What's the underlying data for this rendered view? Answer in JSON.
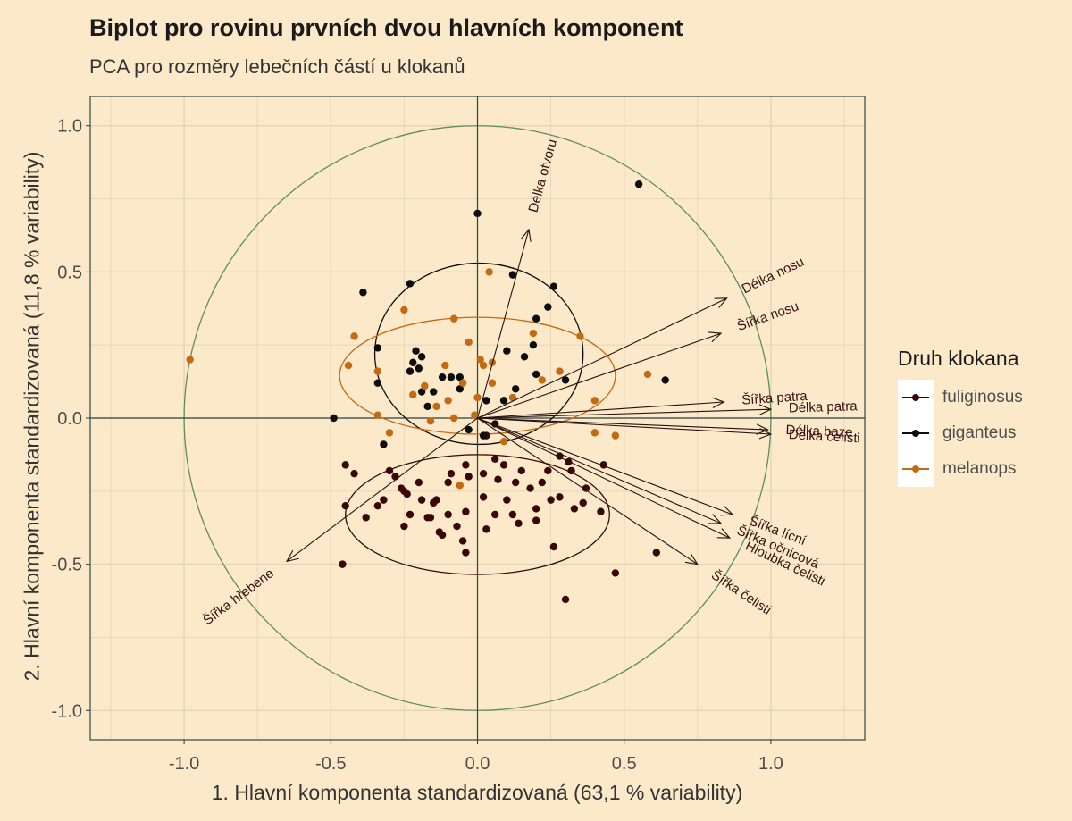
{
  "chart_data": {
    "type": "scatter",
    "title": "Biplot pro rovinu prvních dvou hlavních komponent",
    "subtitle": "PCA pro rozměry lebečních částí u klokanů",
    "xlabel": "1. Hlavní komponenta standardizovaná (63,1 % variability)",
    "ylabel": "2. Hlavní komponenta standardizovaná (11,8 % variability)",
    "xlim": [
      -1.32,
      1.32
    ],
    "ylim": [
      -1.1,
      1.1
    ],
    "x_ticks": [
      -1.0,
      -0.5,
      0.0,
      0.5,
      1.0
    ],
    "x_tick_labels": [
      "-1.0",
      "-0.5",
      "0.0",
      "0.5",
      "1.0"
    ],
    "y_ticks": [
      -1.0,
      -0.5,
      0.0,
      0.5,
      1.0
    ],
    "y_tick_labels": [
      "-1.0",
      "-0.5",
      "0.0",
      "0.5",
      "1.0"
    ],
    "grid": true,
    "legend_title": "Druh klokana",
    "legend_position": "right",
    "colors": {
      "background": "#fbe9c9",
      "grid": "#e3d4b8",
      "axis": "#2b4a44",
      "unit_circle": "#5f8d5e",
      "arrow": "#2a0f10",
      "arrow_label": "#3a0f12"
    },
    "series": [
      {
        "name": "fuliginosus",
        "color": "#3a0708",
        "ellipse": {
          "cx": 0.0,
          "cy": -0.33,
          "rx": 0.45,
          "ry": 0.205
        },
        "points": [
          [
            -0.46,
            -0.5
          ],
          [
            -0.45,
            -0.3
          ],
          [
            -0.45,
            -0.16
          ],
          [
            -0.42,
            -0.19
          ],
          [
            -0.38,
            -0.34
          ],
          [
            -0.34,
            -0.3
          ],
          [
            -0.32,
            -0.28
          ],
          [
            -0.3,
            -0.18
          ],
          [
            -0.28,
            -0.2
          ],
          [
            -0.26,
            -0.24
          ],
          [
            -0.25,
            -0.25
          ],
          [
            -0.25,
            -0.37
          ],
          [
            -0.24,
            -0.26
          ],
          [
            -0.23,
            -0.33
          ],
          [
            -0.2,
            -0.22
          ],
          [
            -0.19,
            -0.28
          ],
          [
            -0.17,
            -0.34
          ],
          [
            -0.16,
            -0.34
          ],
          [
            -0.15,
            -0.29
          ],
          [
            -0.14,
            -0.28
          ],
          [
            -0.13,
            -0.39
          ],
          [
            -0.12,
            -0.4
          ],
          [
            -0.1,
            -0.22
          ],
          [
            -0.1,
            -0.33
          ],
          [
            -0.09,
            -0.19
          ],
          [
            -0.07,
            -0.37
          ],
          [
            -0.05,
            -0.42
          ],
          [
            -0.04,
            -0.16
          ],
          [
            -0.04,
            -0.32
          ],
          [
            -0.04,
            -0.46
          ],
          [
            -0.03,
            -0.2
          ],
          [
            0.02,
            -0.19
          ],
          [
            0.02,
            -0.27
          ],
          [
            0.03,
            -0.06
          ],
          [
            0.03,
            -0.38
          ],
          [
            0.06,
            -0.14
          ],
          [
            0.07,
            -0.21
          ],
          [
            0.06,
            -0.33
          ],
          [
            0.09,
            -0.16
          ],
          [
            0.1,
            -0.28
          ],
          [
            0.12,
            -0.33
          ],
          [
            0.13,
            -0.22
          ],
          [
            0.14,
            -0.36
          ],
          [
            0.15,
            -0.18
          ],
          [
            0.18,
            -0.24
          ],
          [
            0.2,
            -0.31
          ],
          [
            0.2,
            -0.35
          ],
          [
            0.22,
            -0.22
          ],
          [
            0.24,
            -0.18
          ],
          [
            0.25,
            -0.28
          ],
          [
            0.26,
            -0.44
          ],
          [
            0.28,
            -0.27
          ],
          [
            0.28,
            -0.13
          ],
          [
            0.3,
            -0.62
          ],
          [
            0.31,
            -0.15
          ],
          [
            0.32,
            -0.18
          ],
          [
            0.33,
            -0.31
          ],
          [
            0.36,
            -0.29
          ],
          [
            0.37,
            -0.24
          ],
          [
            0.42,
            -0.32
          ],
          [
            0.43,
            -0.16
          ],
          [
            0.47,
            -0.53
          ],
          [
            0.61,
            -0.46
          ]
        ]
      },
      {
        "name": "giganteus",
        "color": "#0d0d0d",
        "ellipse": {
          "cx": 0.005,
          "cy": 0.22,
          "rx": 0.355,
          "ry": 0.31
        },
        "points": [
          [
            -0.49,
            0.0
          ],
          [
            -0.39,
            0.43
          ],
          [
            -0.34,
            0.24
          ],
          [
            -0.34,
            0.12
          ],
          [
            -0.32,
            -0.09
          ],
          [
            -0.23,
            0.46
          ],
          [
            -0.23,
            0.16
          ],
          [
            -0.22,
            0.19
          ],
          [
            -0.21,
            0.23
          ],
          [
            -0.2,
            0.17
          ],
          [
            -0.19,
            0.09
          ],
          [
            -0.19,
            0.21
          ],
          [
            -0.17,
            0.04
          ],
          [
            -0.15,
            0.09
          ],
          [
            -0.12,
            0.14
          ],
          [
            -0.09,
            0.14
          ],
          [
            -0.06,
            0.14
          ],
          [
            -0.06,
            0.1
          ],
          [
            -0.03,
            -0.04
          ],
          [
            0.0,
            0.7
          ],
          [
            0.02,
            -0.06
          ],
          [
            0.03,
            0.06
          ],
          [
            0.06,
            -0.02
          ],
          [
            0.09,
            0.06
          ],
          [
            0.1,
            0.23
          ],
          [
            0.12,
            0.49
          ],
          [
            0.13,
            0.1
          ],
          [
            0.16,
            0.21
          ],
          [
            0.19,
            0.25
          ],
          [
            0.2,
            0.15
          ],
          [
            0.2,
            0.34
          ],
          [
            0.24,
            0.38
          ],
          [
            0.26,
            0.45
          ],
          [
            0.3,
            0.13
          ],
          [
            0.55,
            0.8
          ],
          [
            0.64,
            0.13
          ]
        ]
      },
      {
        "name": "melanops",
        "color": "#c46a12",
        "ellipse": {
          "cx": 0.0,
          "cy": 0.145,
          "rx": 0.47,
          "ry": 0.2
        },
        "points": [
          [
            -0.98,
            0.2
          ],
          [
            -0.44,
            0.18
          ],
          [
            -0.42,
            0.28
          ],
          [
            -0.34,
            0.16
          ],
          [
            -0.34,
            0.01
          ],
          [
            -0.3,
            -0.05
          ],
          [
            -0.25,
            0.37
          ],
          [
            -0.22,
            0.08
          ],
          [
            -0.18,
            0.11
          ],
          [
            -0.16,
            -0.01
          ],
          [
            -0.14,
            0.04
          ],
          [
            -0.11,
            0.18
          ],
          [
            -0.1,
            0.06
          ],
          [
            -0.08,
            0.34
          ],
          [
            -0.08,
            0.0
          ],
          [
            -0.06,
            -0.23
          ],
          [
            -0.05,
            0.12
          ],
          [
            -0.03,
            0.26
          ],
          [
            -0.01,
            0.01
          ],
          [
            0.0,
            0.07
          ],
          [
            0.01,
            0.2
          ],
          [
            0.02,
            0.18
          ],
          [
            0.04,
            0.5
          ],
          [
            0.05,
            0.12
          ],
          [
            0.05,
            0.19
          ],
          [
            0.09,
            -0.08
          ],
          [
            0.12,
            0.07
          ],
          [
            0.19,
            0.29
          ],
          [
            0.22,
            0.13
          ],
          [
            0.28,
            0.16
          ],
          [
            0.35,
            0.28
          ],
          [
            0.4,
            0.06
          ],
          [
            0.4,
            -0.05
          ],
          [
            0.47,
            -0.06
          ],
          [
            0.58,
            0.15
          ]
        ]
      }
    ],
    "loadings": [
      {
        "label": "Délka otvoru",
        "x": 0.175,
        "y": 0.645
      },
      {
        "label": "Délka nosu",
        "x": 0.85,
        "y": 0.41
      },
      {
        "label": "Šířka nosu",
        "x": 0.83,
        "y": 0.29
      },
      {
        "label": "Šířka patra",
        "x": 0.84,
        "y": 0.055
      },
      {
        "label": "Délka patra",
        "x": 1.0,
        "y": 0.03
      },
      {
        "label": "Délka baze",
        "x": 0.99,
        "y": -0.04
      },
      {
        "label": "Délka čelisti",
        "x": 1.0,
        "y": -0.055
      },
      {
        "label": "Šířka očnicová",
        "x": 0.83,
        "y": -0.36
      },
      {
        "label": "Šířka lícní",
        "x": 0.87,
        "y": -0.33
      },
      {
        "label": "Hloubka čelisti",
        "x": 0.86,
        "y": -0.41
      },
      {
        "label": "Šířka čelisti",
        "x": 0.75,
        "y": -0.5
      },
      {
        "label": "Šířka hřebene",
        "x": -0.65,
        "y": -0.49
      }
    ]
  }
}
